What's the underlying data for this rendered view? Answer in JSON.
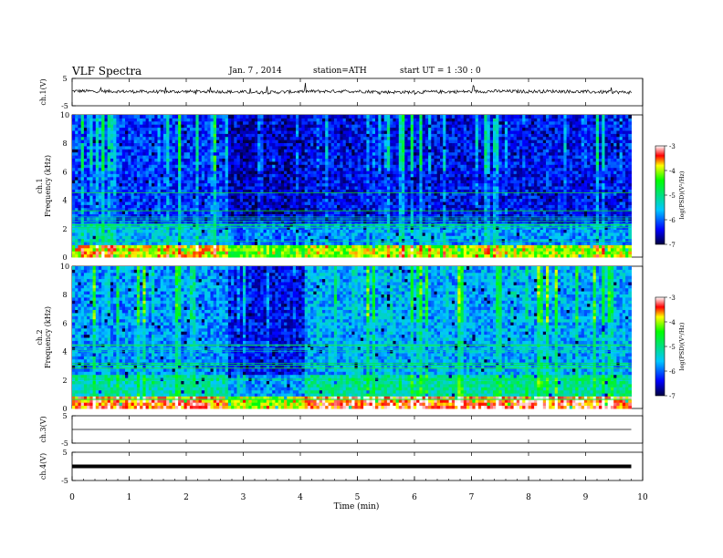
{
  "header": {
    "title": "VLF  Spectra",
    "date": "Jan. 7  , 2014",
    "station": "station=ATH",
    "start": "start  UT  =   1  :30 : 0"
  },
  "chart_data": [
    {
      "type": "line",
      "panel": "ch1-waveform",
      "ylabel": "ch.1(V)",
      "ylim": [
        -5,
        5
      ],
      "yticks": [
        "5",
        "-5"
      ],
      "x": [
        0,
        0.5,
        1,
        1.5,
        2,
        2.5,
        3,
        3.5,
        4,
        4.5,
        5,
        5.5,
        6,
        6.5,
        7,
        7.5,
        8,
        8.5,
        9,
        9.5,
        9.8
      ],
      "values": [
        0.4,
        0.3,
        0.2,
        0.1,
        0.2,
        0.2,
        0.0,
        -0.1,
        0.2,
        0.3,
        0.3,
        0.0,
        0.0,
        0.1,
        0.2,
        0.3,
        0.2,
        0.3,
        0.1,
        0.0,
        -0.1
      ]
    },
    {
      "type": "heatmap",
      "panel": "ch1-spectrogram",
      "ylabel": "ch.1\nFrequency  (kHz)",
      "ylim": [
        0,
        10
      ],
      "yticks": [
        "0",
        "2",
        "4",
        "6",
        "8",
        "10"
      ],
      "colorbar": {
        "label": "log(PSD)(V²/Hz)",
        "ticks": [
          "-3",
          "-4",
          "-5",
          "-6",
          "-7"
        ],
        "range": [
          -7,
          -3
        ]
      },
      "segments": [
        {
          "x": [
            0,
            2.75
          ],
          "mean_log_psd": -6.2
        },
        {
          "x": [
            2.75,
            4.1
          ],
          "mean_log_psd": -6.6
        },
        {
          "x": [
            4.1,
            9.8
          ],
          "mean_log_psd": -6.4
        }
      ]
    },
    {
      "type": "heatmap",
      "panel": "ch2-spectrogram",
      "ylabel": "ch.2\nFrequency  (kHz)",
      "ylim": [
        0,
        10
      ],
      "yticks": [
        "0",
        "2",
        "4",
        "6",
        "8",
        "10"
      ],
      "colorbar": {
        "label": "log(PSD)(V²/Hz)",
        "ticks": [
          "-3",
          "-4",
          "-5",
          "-6",
          "-7"
        ],
        "range": [
          -7,
          -3
        ]
      },
      "segments": [
        {
          "x": [
            0,
            2.75
          ],
          "mean_log_psd": -5.8
        },
        {
          "x": [
            2.75,
            4.1
          ],
          "mean_log_psd": -6.4
        },
        {
          "x": [
            4.1,
            9.8
          ],
          "mean_log_psd": -5.7
        }
      ]
    },
    {
      "type": "line",
      "panel": "ch3-waveform",
      "ylabel": "ch.3(V)",
      "ylim": [
        -5,
        5
      ],
      "yticks": [
        "5",
        "-5"
      ],
      "x": [
        0,
        9.8
      ],
      "values": [
        0,
        0
      ]
    },
    {
      "type": "line",
      "panel": "ch4-waveform",
      "ylabel": "ch.4(V)",
      "ylim": [
        -5,
        5
      ],
      "yticks": [
        "5",
        "-5"
      ],
      "x": [
        0,
        9.8
      ],
      "values": [
        0,
        0
      ]
    }
  ],
  "xaxis": {
    "label": "Time  (min)",
    "xlim": [
      0,
      10
    ],
    "ticks": [
      "0",
      "1",
      "2",
      "3",
      "4",
      "5",
      "6",
      "7",
      "8",
      "9",
      "10"
    ]
  }
}
